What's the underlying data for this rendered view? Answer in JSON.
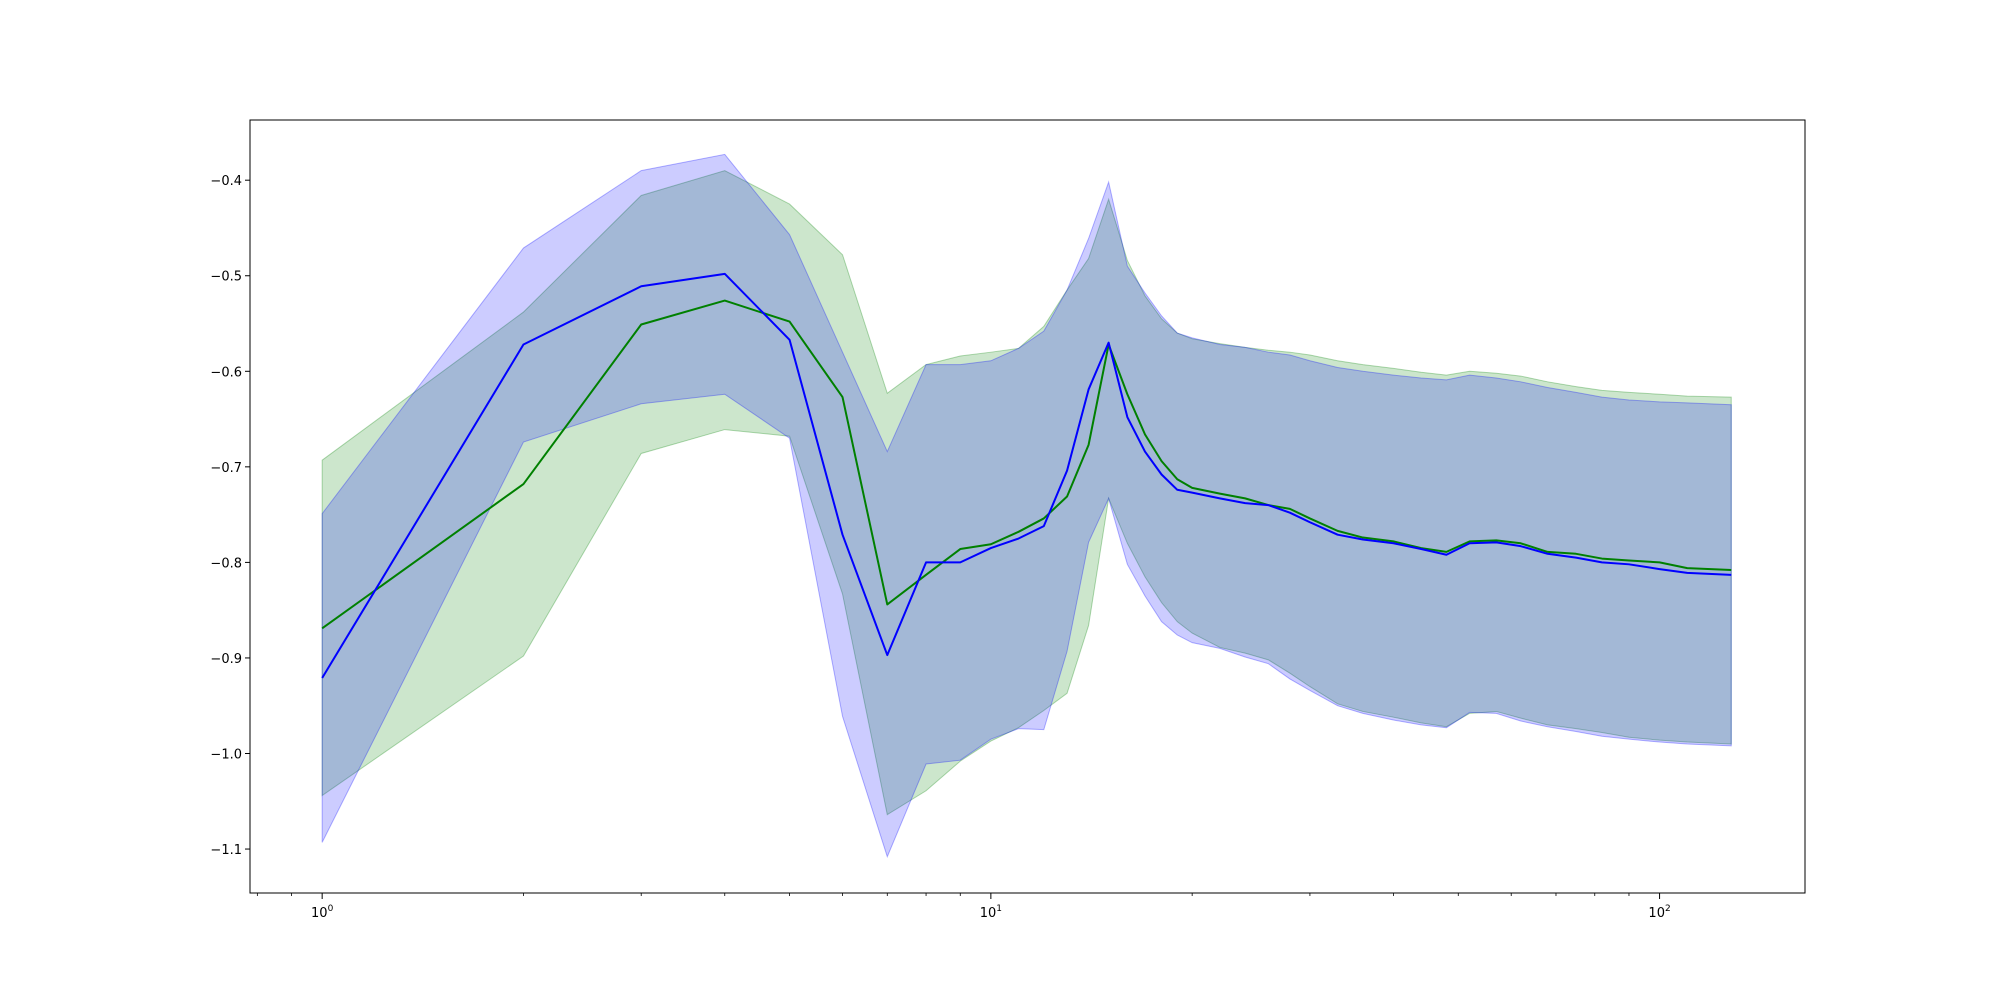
{
  "chart_data": {
    "type": "line",
    "title": "",
    "xlabel": "",
    "ylabel": "",
    "xscale": "log",
    "xlim": [
      0.78,
      165
    ],
    "ylim": [
      -1.146,
      -0.337
    ],
    "grid": false,
    "legend": "none",
    "y_ticks": [
      {
        "value": -0.4,
        "label": "−0.4"
      },
      {
        "value": -0.5,
        "label": "−0.5"
      },
      {
        "value": -0.6,
        "label": "−0.6"
      },
      {
        "value": -0.7,
        "label": "−0.7"
      },
      {
        "value": -0.8,
        "label": "−0.8"
      },
      {
        "value": -0.9,
        "label": "−0.9"
      },
      {
        "value": -1.0,
        "label": "−1.0"
      },
      {
        "value": -1.1,
        "label": "−1.1"
      }
    ],
    "x_ticks": [
      {
        "value": 1,
        "base": "10",
        "exp": "0"
      },
      {
        "value": 10,
        "base": "10",
        "exp": "1"
      },
      {
        "value": 100,
        "base": "10",
        "exp": "2"
      }
    ],
    "series": [
      {
        "color": "#008000",
        "band_color": "#008000",
        "band_opacity": 0.2,
        "x": [
          1,
          2,
          3,
          4,
          5,
          6,
          7,
          8,
          9,
          10,
          11,
          12,
          13,
          14,
          15,
          16,
          17,
          18,
          19,
          20,
          22,
          24,
          26,
          28,
          30,
          33,
          36,
          40,
          44,
          48,
          52,
          57,
          62,
          68,
          75,
          82,
          90,
          100,
          110,
          128
        ],
        "y": [
          -0.869,
          -0.718,
          -0.551,
          -0.526,
          -0.548,
          -0.627,
          -0.844,
          -0.813,
          -0.786,
          -0.781,
          -0.768,
          -0.754,
          -0.731,
          -0.677,
          -0.572,
          -0.624,
          -0.666,
          -0.694,
          -0.713,
          -0.722,
          -0.728,
          -0.733,
          -0.74,
          -0.744,
          -0.754,
          -0.767,
          -0.774,
          -0.778,
          -0.785,
          -0.789,
          -0.778,
          -0.777,
          -0.78,
          -0.789,
          -0.791,
          -0.796,
          -0.798,
          -0.8,
          -0.806,
          -0.808
        ],
        "lower": [
          -1.044,
          -0.898,
          -0.686,
          -0.661,
          -0.668,
          -0.833,
          -1.064,
          -1.039,
          -1.008,
          -0.987,
          -0.973,
          -0.955,
          -0.937,
          -0.866,
          -0.733,
          -0.78,
          -0.815,
          -0.842,
          -0.862,
          -0.874,
          -0.889,
          -0.895,
          -0.902,
          -0.916,
          -0.93,
          -0.948,
          -0.956,
          -0.962,
          -0.968,
          -0.972,
          -0.958,
          -0.956,
          -0.963,
          -0.97,
          -0.974,
          -0.978,
          -0.983,
          -0.986,
          -0.988,
          -0.99
        ],
        "upper": [
          -0.693,
          -0.538,
          -0.416,
          -0.39,
          -0.425,
          -0.478,
          -0.623,
          -0.593,
          -0.584,
          -0.58,
          -0.576,
          -0.553,
          -0.515,
          -0.482,
          -0.42,
          -0.484,
          -0.521,
          -0.545,
          -0.56,
          -0.566,
          -0.571,
          -0.575,
          -0.578,
          -0.58,
          -0.583,
          -0.589,
          -0.593,
          -0.597,
          -0.601,
          -0.604,
          -0.6,
          -0.602,
          -0.605,
          -0.611,
          -0.616,
          -0.62,
          -0.622,
          -0.624,
          -0.626,
          -0.627
        ]
      },
      {
        "color": "#0000ff",
        "band_color": "#0000ff",
        "band_opacity": 0.2,
        "x": [
          1,
          2,
          3,
          4,
          5,
          6,
          7,
          8,
          9,
          10,
          11,
          12,
          13,
          14,
          15,
          16,
          17,
          18,
          19,
          20,
          22,
          24,
          26,
          28,
          30,
          33,
          36,
          40,
          44,
          48,
          52,
          57,
          62,
          68,
          75,
          82,
          90,
          100,
          110,
          128
        ],
        "y": [
          -0.921,
          -0.572,
          -0.511,
          -0.498,
          -0.567,
          -0.771,
          -0.897,
          -0.8,
          -0.8,
          -0.785,
          -0.775,
          -0.762,
          -0.704,
          -0.619,
          -0.57,
          -0.648,
          -0.684,
          -0.708,
          -0.724,
          -0.727,
          -0.733,
          -0.738,
          -0.74,
          -0.748,
          -0.758,
          -0.771,
          -0.776,
          -0.78,
          -0.786,
          -0.792,
          -0.78,
          -0.779,
          -0.783,
          -0.791,
          -0.795,
          -0.8,
          -0.802,
          -0.807,
          -0.811,
          -0.813
        ],
        "lower": [
          -1.093,
          -0.674,
          -0.634,
          -0.624,
          -0.67,
          -0.961,
          -1.108,
          -1.011,
          -1.007,
          -0.985,
          -0.974,
          -0.975,
          -0.893,
          -0.779,
          -0.733,
          -0.802,
          -0.835,
          -0.862,
          -0.876,
          -0.884,
          -0.89,
          -0.899,
          -0.906,
          -0.922,
          -0.934,
          -0.95,
          -0.958,
          -0.965,
          -0.97,
          -0.973,
          -0.957,
          -0.958,
          -0.966,
          -0.972,
          -0.977,
          -0.982,
          -0.985,
          -0.988,
          -0.99,
          -0.992
        ],
        "upper": [
          -0.749,
          -0.471,
          -0.39,
          -0.373,
          -0.457,
          -0.58,
          -0.684,
          -0.593,
          -0.593,
          -0.589,
          -0.576,
          -0.558,
          -0.515,
          -0.461,
          -0.402,
          -0.49,
          -0.518,
          -0.542,
          -0.56,
          -0.565,
          -0.572,
          -0.575,
          -0.58,
          -0.583,
          -0.589,
          -0.596,
          -0.6,
          -0.604,
          -0.607,
          -0.609,
          -0.604,
          -0.607,
          -0.611,
          -0.617,
          -0.622,
          -0.627,
          -0.63,
          -0.632,
          -0.633,
          -0.635
        ]
      }
    ]
  }
}
